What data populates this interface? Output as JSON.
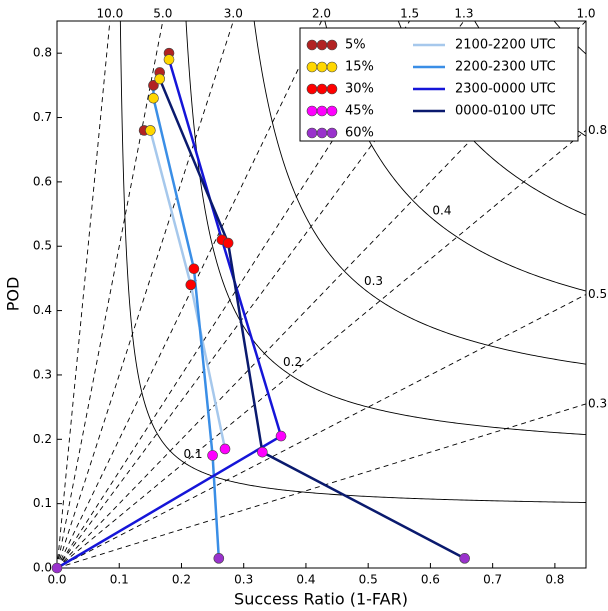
{
  "chart_data": {
    "type": "performance",
    "x_label": "Success Ratio (1-FAR)",
    "y_label": "POD",
    "xlim": [
      0,
      0.85
    ],
    "ylim": [
      0,
      0.85
    ],
    "xticks": [
      {
        "value": 0,
        "label": "0.0"
      },
      0.1,
      0.2,
      0.3,
      0.4,
      0.5,
      0.6,
      0.7,
      0.8
    ],
    "yticks": [
      {
        "value": 0,
        "label": "0.0"
      },
      0.1,
      0.2,
      0.3,
      0.4,
      0.5,
      0.6,
      0.7,
      0.8
    ],
    "bias_lines": [
      {
        "value": 10,
        "label": "10.0"
      },
      {
        "value": 5,
        "label": "5.0"
      },
      {
        "value": 3,
        "label": "3.0"
      },
      {
        "value": 2,
        "label": "2.0"
      },
      1.5,
      1.3,
      {
        "value": 1,
        "label": "1.0"
      },
      0.8,
      0.5,
      0.3
    ],
    "csi_contours": [
      0.1,
      0.2,
      0.3,
      0.4,
      0.5,
      0.6,
      0.7,
      0.8,
      0.9
    ],
    "csi_labels": [
      "0.1",
      "0.2",
      "0.3",
      "0.4",
      null,
      null,
      null,
      null,
      null
    ],
    "thresholds": [
      {
        "name": "5%",
        "color": "#b22222"
      },
      {
        "name": "15%",
        "color": "#ffd700"
      },
      {
        "name": "30%",
        "color": "#ff0000"
      },
      {
        "name": "45%",
        "color": "#ff00ff"
      },
      {
        "name": "60%",
        "color": "#9932cc"
      }
    ],
    "series": [
      {
        "name": "2100-2200 UTC",
        "color": "#a6c8ec",
        "x": [
          0.14,
          0.15,
          0.215,
          0.27,
          null
        ],
        "values": [
          0.68,
          0.68,
          0.44,
          0.185,
          null
        ]
      },
      {
        "name": "2200-2300 UTC",
        "color": "#3a8ee6",
        "x": [
          0.155,
          0.155,
          0.22,
          0.25,
          0.26
        ],
        "values": [
          0.75,
          0.73,
          0.465,
          0.175,
          0.015
        ]
      },
      {
        "name": "2300-0000 UTC",
        "color": "#1515d8",
        "x": [
          0.18,
          0.18,
          0.265,
          0.36,
          0
        ],
        "values": [
          0.8,
          0.79,
          0.51,
          0.205,
          0
        ]
      },
      {
        "name": "0000-0100 UTC",
        "color": "#0a1a6e",
        "x": [
          0.165,
          0.165,
          0.275,
          0.33,
          0.655
        ],
        "values": [
          0.77,
          0.76,
          0.505,
          0.18,
          0.015
        ]
      }
    ]
  }
}
